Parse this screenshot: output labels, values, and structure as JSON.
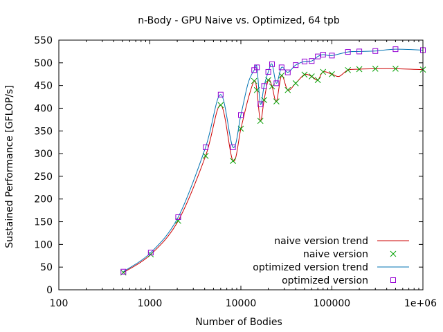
{
  "chart_data": {
    "type": "scatter",
    "title": "n-Body - GPU Naive vs. Optimized, 64 tpb",
    "xlabel": "Number of Bodies",
    "ylabel": "Sustained Performance [GFLOP/s]",
    "xscale": "log",
    "xlim": [
      100,
      1000000
    ],
    "ylim": [
      0,
      550
    ],
    "x_ticks": [
      {
        "value": 100,
        "label": "100"
      },
      {
        "value": 1000,
        "label": "1000"
      },
      {
        "value": 10000,
        "label": "10000"
      },
      {
        "value": 100000,
        "label": "100000"
      },
      {
        "value": 1000000,
        "label": "1e+06"
      }
    ],
    "y_ticks": [
      {
        "value": 0,
        "label": "0"
      },
      {
        "value": 50,
        "label": "50"
      },
      {
        "value": 100,
        "label": "100"
      },
      {
        "value": 150,
        "label": "150"
      },
      {
        "value": 200,
        "label": "200"
      },
      {
        "value": 250,
        "label": "250"
      },
      {
        "value": 300,
        "label": "300"
      },
      {
        "value": 350,
        "label": "350"
      },
      {
        "value": 400,
        "label": "400"
      },
      {
        "value": 450,
        "label": "450"
      },
      {
        "value": 500,
        "label": "500"
      },
      {
        "value": 550,
        "label": "550"
      }
    ],
    "grid": false,
    "legend_position": "bottom-right",
    "series": [
      {
        "name": "naive version trend",
        "kind": "line",
        "color": "#cc0000",
        "x": [
          512,
          1024,
          2048,
          4096,
          6000,
          8192,
          10000,
          12000,
          14000,
          15000,
          16384,
          18000,
          20000,
          22000,
          24576,
          28000,
          32768,
          40000,
          50000,
          60000,
          70000,
          80000,
          100000,
          120000,
          150000,
          200000,
          300000,
          500000,
          1000000
        ],
        "y": [
          38,
          78,
          152,
          295,
          407,
          284,
          355,
          420,
          460,
          440,
          372,
          418,
          462,
          448,
          415,
          472,
          440,
          455,
          474,
          470,
          462,
          480,
          475,
          470,
          484,
          486,
          487,
          487,
          485
        ]
      },
      {
        "name": "naive version",
        "kind": "points",
        "marker": "x",
        "color": "#00a000",
        "x": [
          512,
          1024,
          2048,
          4096,
          6000,
          8192,
          10000,
          14000,
          15000,
          16384,
          18000,
          20000,
          22000,
          24576,
          28000,
          32768,
          40000,
          50000,
          60000,
          70000,
          80000,
          100000,
          150000,
          200000,
          300000,
          500000,
          1000000
        ],
        "y": [
          38,
          78,
          152,
          295,
          407,
          284,
          355,
          460,
          440,
          372,
          418,
          462,
          448,
          415,
          472,
          440,
          455,
          474,
          470,
          462,
          480,
          475,
          484,
          486,
          487,
          487,
          485
        ]
      },
      {
        "name": "optimized version trend",
        "kind": "line",
        "color": "#0072b2",
        "x": [
          512,
          1024,
          2048,
          4096,
          6000,
          8192,
          10000,
          12000,
          14000,
          15000,
          16384,
          18000,
          20000,
          22000,
          24576,
          28000,
          32768,
          40000,
          50000,
          60000,
          70000,
          80000,
          100000,
          150000,
          200000,
          300000,
          500000,
          1000000
        ],
        "y": [
          40,
          82,
          160,
          314,
          430,
          314,
          385,
          455,
          484,
          490,
          409,
          449,
          480,
          497,
          455,
          490,
          479,
          495,
          503,
          504,
          514,
          518,
          516,
          524,
          525,
          526,
          530,
          528
        ]
      },
      {
        "name": "optimized version",
        "kind": "points",
        "marker": "square",
        "color": "#9400d3",
        "x": [
          512,
          1024,
          2048,
          4096,
          6000,
          8192,
          10000,
          14000,
          15000,
          16384,
          18000,
          20000,
          22000,
          24576,
          28000,
          32768,
          40000,
          50000,
          60000,
          70000,
          80000,
          100000,
          150000,
          200000,
          300000,
          500000,
          1000000
        ],
        "y": [
          40,
          82,
          160,
          314,
          430,
          314,
          385,
          484,
          490,
          409,
          449,
          480,
          497,
          455,
          490,
          479,
          495,
          503,
          504,
          514,
          518,
          516,
          524,
          525,
          526,
          530,
          528
        ]
      }
    ]
  }
}
